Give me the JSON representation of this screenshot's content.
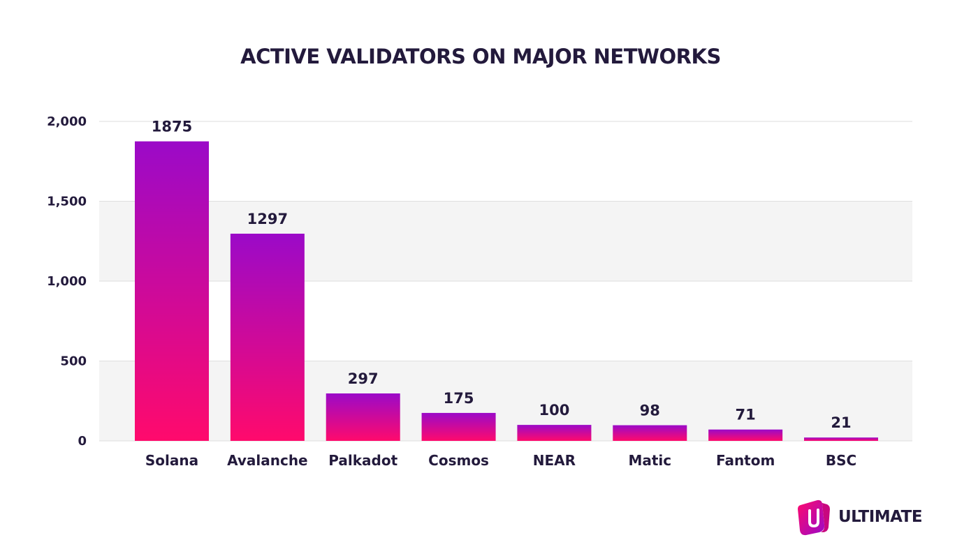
{
  "chart_data": {
    "type": "bar",
    "title": "ACTIVE VALIDATORS ON MAJOR NETWORKS",
    "xlabel": "",
    "ylabel": "",
    "categories": [
      "Solana",
      "Avalanche",
      "Palkadot",
      "Cosmos",
      "NEAR",
      "Matic",
      "Fantom",
      "BSC"
    ],
    "values": [
      1875,
      1297,
      297,
      175,
      100,
      98,
      71,
      21
    ],
    "value_labels": [
      "1875",
      "1297",
      "297",
      "175",
      "100",
      "98",
      "71",
      "21"
    ],
    "ylim": [
      0,
      2000
    ],
    "yticks": [
      0,
      500,
      1000,
      1500,
      2000
    ],
    "ytick_labels": [
      "0",
      "500",
      "1,000",
      "1,500",
      "2,000"
    ],
    "grid": true,
    "legend": "none",
    "colors": {
      "bar_top": "#9b0ac8",
      "bar_bottom": "#ff0a6c",
      "band_fill": "#f4f4f4",
      "grid_line": "#dedede",
      "text": "#231a3c"
    }
  },
  "brand": {
    "name": "ULTIMATE",
    "logo_icon": "ultimate-logo-icon"
  }
}
